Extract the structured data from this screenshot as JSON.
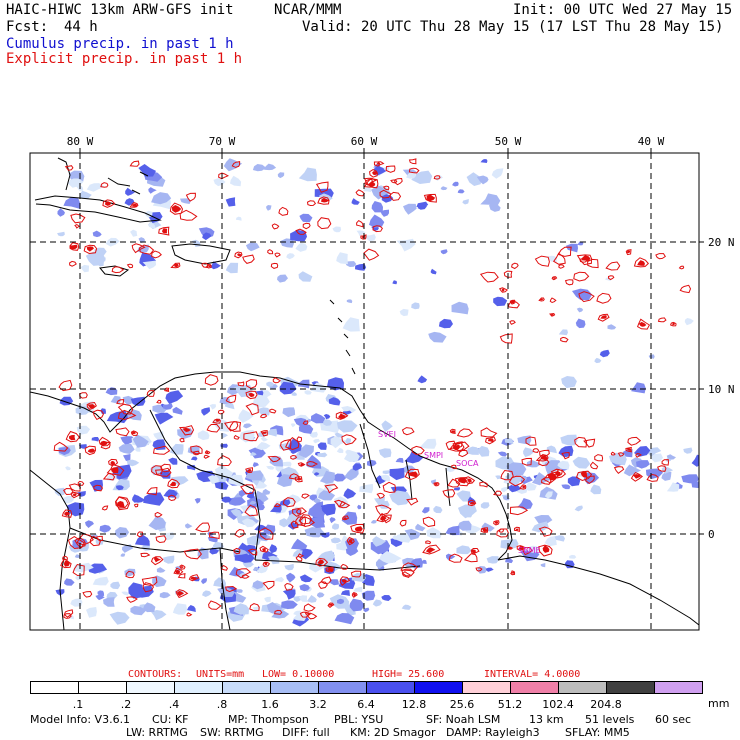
{
  "header": {
    "title": "HAIC-HIWC 13km ARW-GFS init",
    "org": "NCAR/MMM",
    "init": "Init: 00 UTC Wed 27 May 15",
    "fcst_label": "Fcst:",
    "fcst_value": "44 h",
    "valid": "Valid: 20 UTC Thu 28 May 15 (17 LST Thu 28 May 15)"
  },
  "legend": {
    "cumulus": "Cumulus precip. in past 1 h",
    "explicit": "Explicit precip. in past 1 h"
  },
  "map": {
    "lon_labels": [
      "80 W",
      "70 W",
      "60 W",
      "50 W",
      "40 W"
    ],
    "lat_labels": [
      "20 N",
      "10 N",
      "0"
    ],
    "station_labels": [
      "SVEI",
      "SMPI",
      "SOCA",
      "SBME"
    ],
    "colors": {
      "explicit": "#e01010",
      "cumulus": "#4a5ae8",
      "coast": "#000000",
      "grid": "#000000"
    }
  },
  "contours": {
    "title": "CONTOURS:",
    "units": "UNITS=mm",
    "low": "LOW= 0.10000",
    "high": "HIGH= 25.600",
    "interval": "INTERVAL= 4.0000"
  },
  "colorbar": {
    "unit": "mm",
    "labels": [
      ".1",
      ".2",
      ".4",
      ".8",
      "1.6",
      "3.2",
      "6.4",
      "12.8",
      "25.6",
      "51.2",
      "102.4",
      "204.8"
    ],
    "colors": [
      "#ffffff",
      "#ffffff",
      "#f0f8ff",
      "#e0f0ff",
      "#c8dcfa",
      "#a8bef5",
      "#8290f0",
      "#4a50ee",
      "#1010f0",
      "#ffd0d8",
      "#f080a8",
      "#bcbcbc",
      "#404040",
      "#d0a0f0"
    ]
  },
  "model_info": {
    "line1": [
      "Model Info: V3.6.1",
      "CU: KF",
      "MP: Thompson",
      "PBL: YSU",
      "SF: Noah LSM",
      "13 km",
      "51 levels",
      "60 sec"
    ],
    "line2": [
      "LW: RRTMG",
      "SW: RRTMG",
      "DIFF: full",
      "KM: 2D Smagor",
      "DAMP: Rayleigh3",
      "SFLAY: MM5"
    ]
  }
}
